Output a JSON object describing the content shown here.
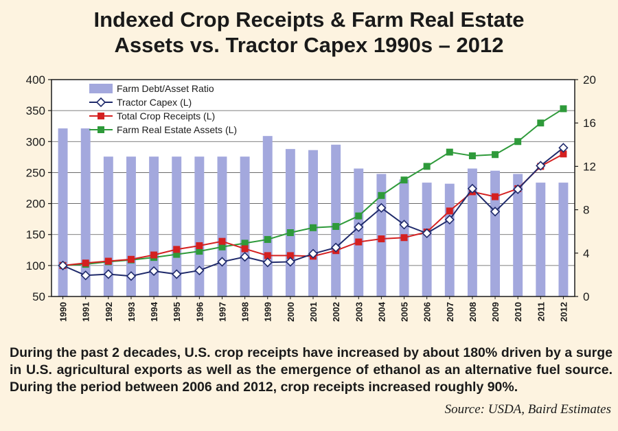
{
  "header": {
    "title_line1": "Indexed Crop Receipts & Farm Real Estate",
    "title_line2": "Assets vs. Tractor Capex 1990s – 2012"
  },
  "caption": "During the past 2 decades, U.S. crop receipts have increased by about 180% driven by a surge in U.S. agricultural exports as well as the emergence of ethanol as an alternative fuel source. During the period between 2006 and 2012, crop receipts increased roughly 90%.",
  "source": "Source: USDA, Baird Estimates",
  "colors": {
    "background": "#fdf3e0",
    "bar": "#a3a8dd",
    "tractor": "#1f2a6b",
    "crop": "#d42020",
    "real_estate": "#2e9a3a"
  },
  "chart_data": {
    "type": "bar+line",
    "categories": [
      "1990",
      "1991",
      "1992",
      "1993",
      "1994",
      "1995",
      "1996",
      "1997",
      "1998",
      "1999",
      "2000",
      "2001",
      "2002",
      "2003",
      "2004",
      "2005",
      "2006",
      "2007",
      "2008",
      "2009",
      "2010",
      "2011",
      "2012"
    ],
    "y_left": {
      "min": 50,
      "max": 400,
      "ticks": [
        "400",
        "350",
        "300",
        "250",
        "200",
        "150",
        "100",
        "50"
      ]
    },
    "y_right": {
      "min": 0,
      "max": 20,
      "ticks": [
        "20",
        "16",
        "12",
        "8",
        "4",
        "0"
      ]
    },
    "grid": true,
    "legend_position": "top-left",
    "series": [
      {
        "name": "Farm Debt/Asset Ratio",
        "type": "bar",
        "axis": "right",
        "values": [
          15.5,
          15.5,
          12.9,
          12.9,
          12.9,
          12.9,
          12.9,
          12.9,
          12.9,
          14.8,
          13.6,
          13.5,
          14.0,
          11.8,
          11.3,
          10.8,
          10.5,
          10.4,
          11.8,
          11.6,
          11.3,
          10.5,
          10.5
        ]
      },
      {
        "name": "Tractor Capex (L)",
        "type": "line",
        "axis": "left",
        "marker": "diamond",
        "values": [
          100,
          84,
          86,
          83,
          91,
          86,
          92,
          106,
          114,
          105,
          106,
          119,
          129,
          162,
          193,
          166,
          152,
          174,
          224,
          187,
          223,
          261,
          290
        ]
      },
      {
        "name": "Total Crop Receipts (L)",
        "type": "line",
        "axis": "left",
        "marker": "square",
        "values": [
          100,
          104,
          107,
          110,
          117,
          126,
          132,
          139,
          127,
          116,
          116,
          115,
          124,
          138,
          143,
          145,
          154,
          188,
          219,
          211,
          224,
          260,
          280
        ]
      },
      {
        "name": "Farm Real Estate Assets (L)",
        "type": "line",
        "axis": "left",
        "marker": "square",
        "values": [
          100,
          102,
          106,
          109,
          113,
          118,
          123,
          130,
          136,
          142,
          153,
          161,
          163,
          180,
          213,
          238,
          260,
          283,
          277,
          279,
          300,
          330,
          353
        ]
      }
    ]
  }
}
